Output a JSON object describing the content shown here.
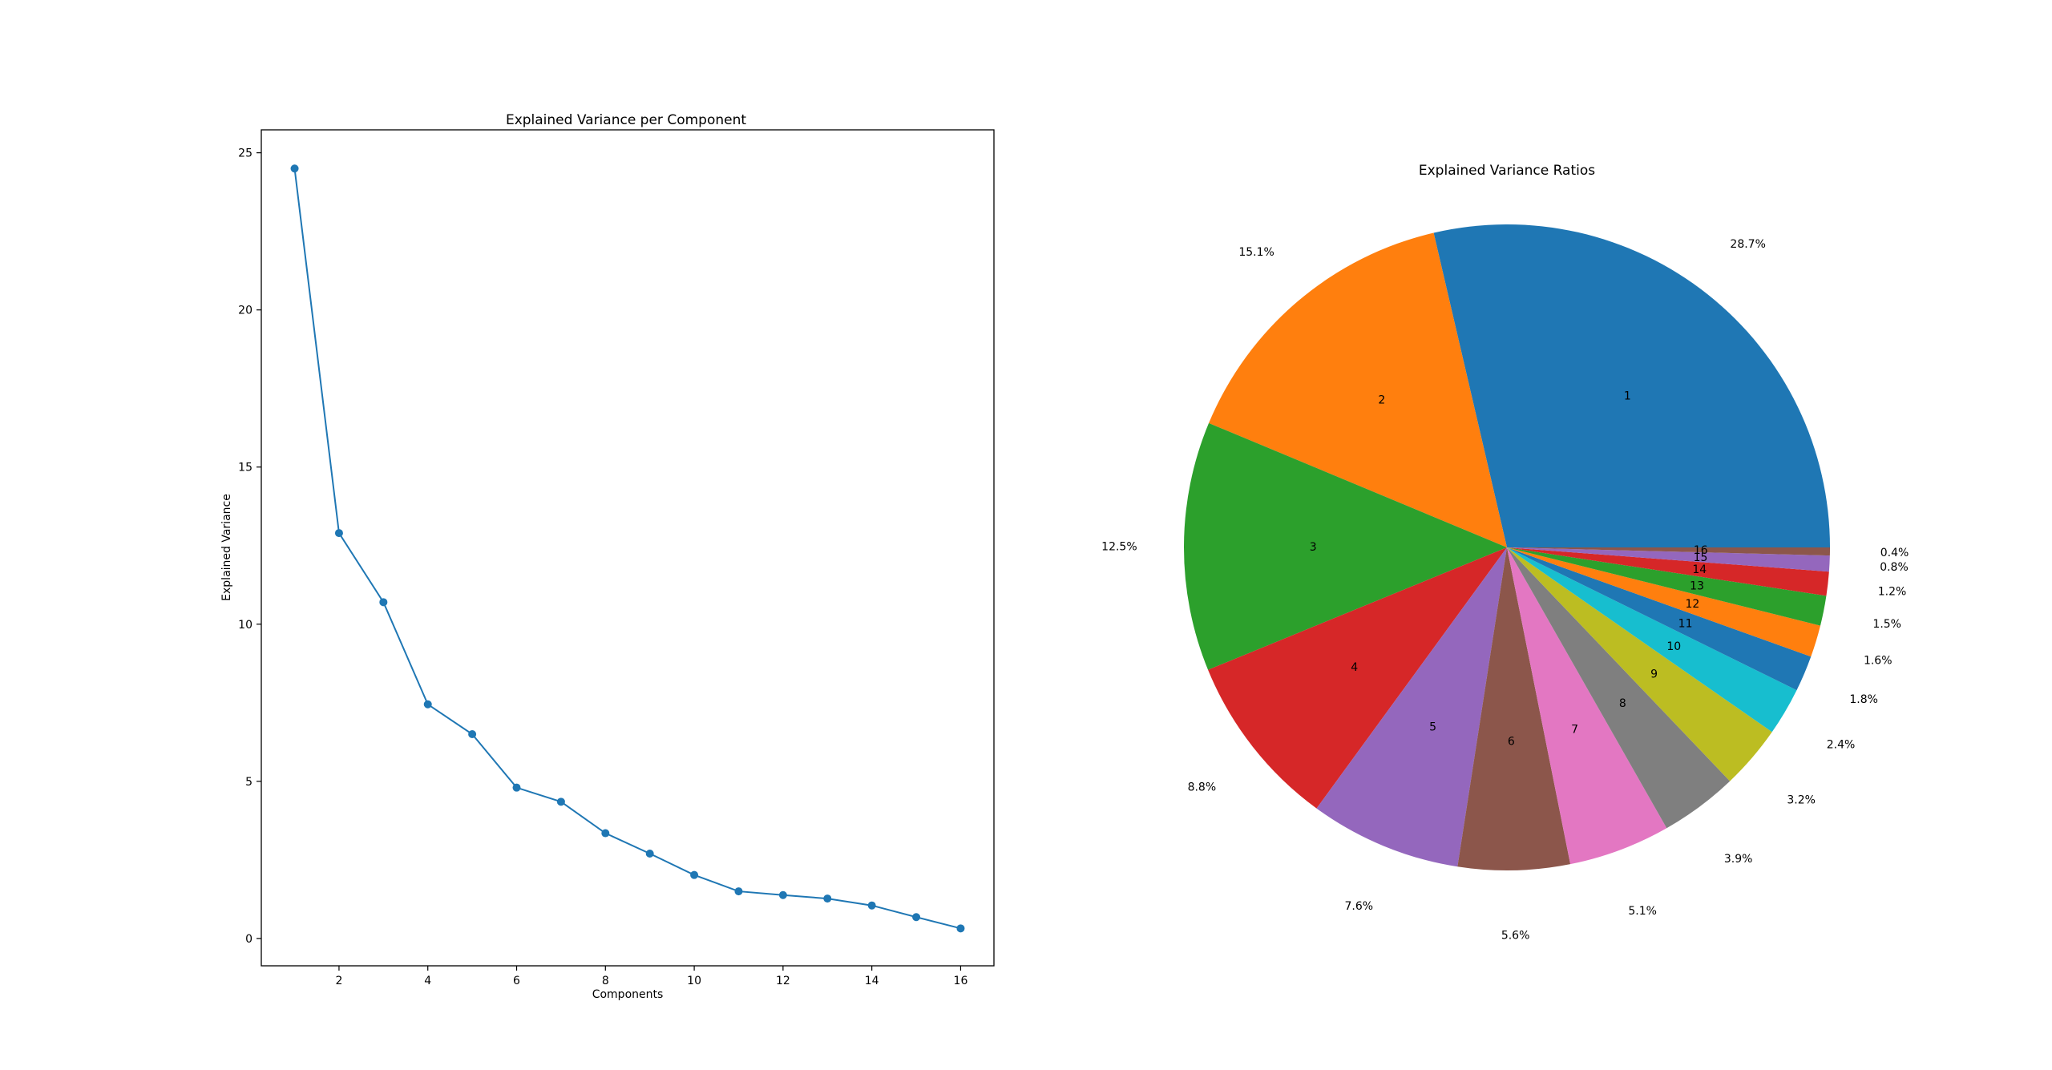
{
  "chart_data": [
    {
      "type": "line",
      "title": "Explained Variance per Component",
      "xlabel": "Components",
      "ylabel": "Explained Variance",
      "x": [
        1,
        2,
        3,
        4,
        5,
        6,
        7,
        8,
        9,
        10,
        11,
        12,
        13,
        14,
        15,
        16
      ],
      "values": [
        24.5,
        12.9,
        10.7,
        7.45,
        6.5,
        4.8,
        4.35,
        3.35,
        2.7,
        2.02,
        1.5,
        1.38,
        1.27,
        1.05,
        0.68,
        0.32
      ],
      "xticks": [
        2,
        4,
        6,
        8,
        10,
        12,
        14,
        16
      ],
      "yticks": [
        0,
        5,
        10,
        15,
        20,
        25
      ],
      "xlim": [
        0.25,
        16.75
      ],
      "ylim": [
        -0.87,
        25.73
      ],
      "color": "#1f77b4",
      "marker": "circle",
      "grid": false
    },
    {
      "type": "pie",
      "title": "Explained Variance Ratios",
      "labels": [
        "1",
        "2",
        "3",
        "4",
        "5",
        "6",
        "7",
        "8",
        "9",
        "10",
        "11",
        "12",
        "13",
        "14",
        "15",
        "16"
      ],
      "values": [
        28.7,
        15.1,
        12.5,
        8.8,
        7.6,
        5.6,
        5.1,
        3.9,
        3.2,
        2.4,
        1.8,
        1.6,
        1.5,
        1.2,
        0.8,
        0.4
      ],
      "percent_labels": [
        "28.7%",
        "15.1%",
        "12.5%",
        "8.8%",
        "7.6%",
        "5.6%",
        "5.1%",
        "3.9%",
        "3.2%",
        "2.4%",
        "1.8%",
        "1.6%",
        "1.5%",
        "1.2%",
        "0.8%",
        "0.4%"
      ],
      "colors": [
        "#1f77b4",
        "#ff7f0e",
        "#2ca02c",
        "#d62728",
        "#9467bd",
        "#8c564b",
        "#e377c2",
        "#7f7f7f",
        "#bcbd22",
        "#17becf",
        "#1f77b4",
        "#ff7f0e",
        "#2ca02c",
        "#d62728",
        "#9467bd",
        "#8c564b"
      ],
      "start_angle_deg": 0,
      "direction": "counterclockwise"
    }
  ]
}
